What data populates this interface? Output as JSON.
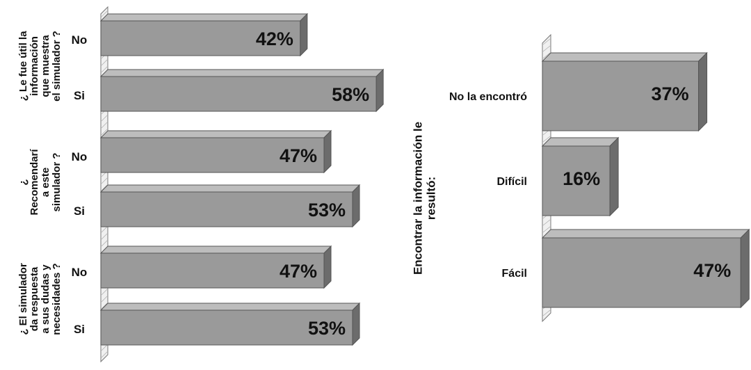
{
  "chart_data": [
    {
      "type": "bar",
      "orientation": "horizontal",
      "style": "3d",
      "groups": [
        {
          "label": "¿ Le fue útil la información que muestra el simulador ?",
          "label_lines": [
            "¿ Le fue útil la",
            "información",
            "que muestra",
            "el simulador ?"
          ],
          "categories": [
            "No",
            "Si"
          ],
          "values": [
            42,
            58
          ],
          "data_labels": [
            "42%",
            "58%"
          ]
        },
        {
          "label": "¿ Recomendaría este simulador ?",
          "label_lines": [
            "¿",
            "Recomendarí",
            "a este",
            "simulador ?"
          ],
          "categories": [
            "No",
            "Si"
          ],
          "values": [
            47,
            53
          ],
          "data_labels": [
            "47%",
            "53%"
          ]
        },
        {
          "label": "¿ El simulador da respuesta a sus dudas y necesidades ?",
          "label_lines": [
            "¿ El simulador",
            "da respuesta",
            "a sus dudas y",
            "necesidades ?"
          ],
          "categories": [
            "No",
            "Si"
          ],
          "values": [
            47,
            53
          ],
          "data_labels": [
            "47%",
            "53%"
          ]
        }
      ],
      "bar_color": "#9a9a9a"
    },
    {
      "type": "bar",
      "orientation": "horizontal",
      "style": "3d",
      "ylabel_lines": [
        "Encontrar la información le",
        "resultó:"
      ],
      "categories": [
        "No la encontró",
        "Difícil",
        "Fácil"
      ],
      "values": [
        37,
        16,
        47
      ],
      "data_labels": [
        "37%",
        "16%",
        "47%"
      ],
      "bar_color": "#9a9a9a"
    }
  ]
}
